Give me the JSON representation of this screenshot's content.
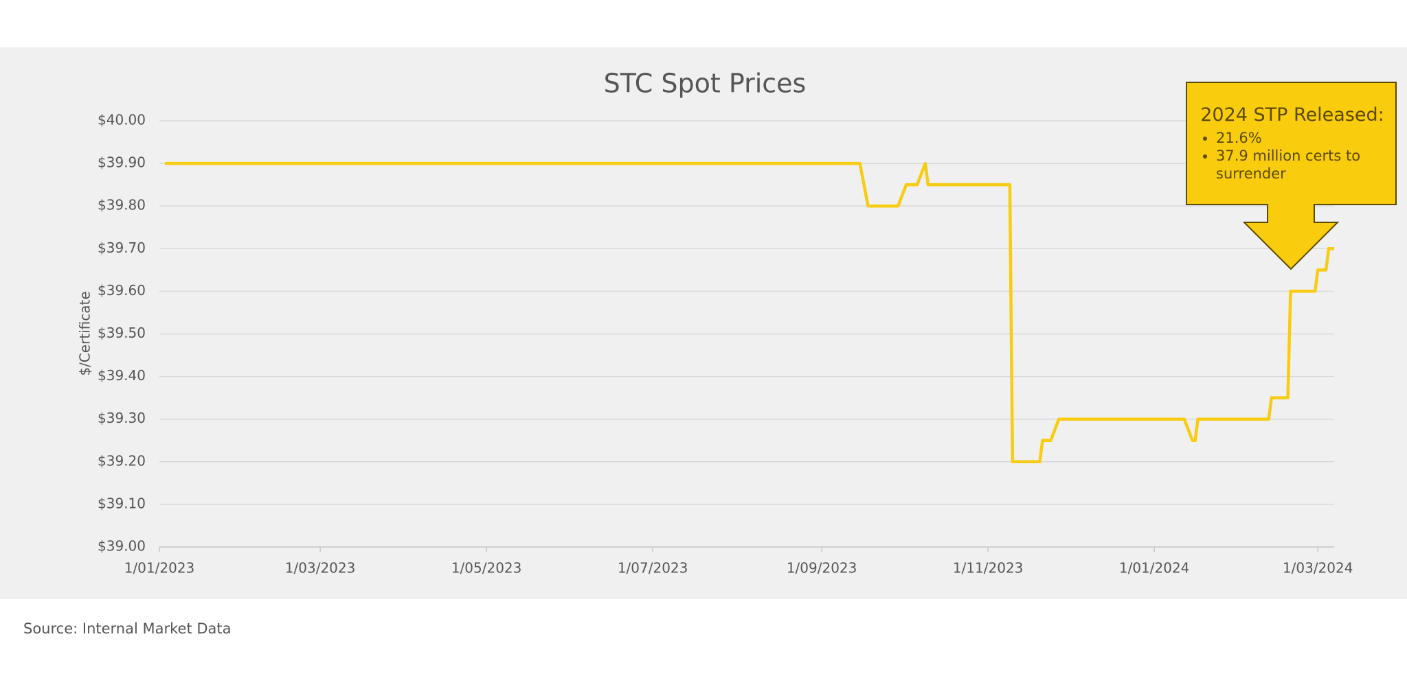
{
  "chart_data": {
    "type": "line",
    "title": "STC Spot Prices",
    "y_label": "$/Certificate",
    "source": "Source: Internal Market Data",
    "color": "#f7cc12",
    "grid": true,
    "x": [
      "2023-01-03",
      "2023-09-15",
      "2023-09-18",
      "2023-09-29",
      "2023-10-02",
      "2023-10-06",
      "2023-10-09",
      "2023-10-10",
      "2023-11-09",
      "2023-11-10",
      "2023-11-20",
      "2023-11-21",
      "2023-11-24",
      "2023-11-27",
      "2024-01-12",
      "2024-01-15",
      "2024-01-16",
      "2024-01-17",
      "2024-02-12",
      "2024-02-13",
      "2024-02-19",
      "2024-02-20",
      "2024-02-29",
      "2024-03-01",
      "2024-03-04",
      "2024-03-05",
      "2024-03-07"
    ],
    "values": [
      39.9,
      39.9,
      39.8,
      39.8,
      39.85,
      39.85,
      39.9,
      39.85,
      39.85,
      39.2,
      39.2,
      39.25,
      39.25,
      39.3,
      39.3,
      39.25,
      39.25,
      39.3,
      39.3,
      39.35,
      39.35,
      39.6,
      39.6,
      39.65,
      39.65,
      39.7,
      39.7
    ],
    "xlim": [
      "2023-01-01",
      "2024-03-07"
    ],
    "xticks": [
      {
        "value": "2023-01-01",
        "label": "1/01/2023"
      },
      {
        "value": "2023-03-01",
        "label": "1/03/2023"
      },
      {
        "value": "2023-05-01",
        "label": "1/05/2023"
      },
      {
        "value": "2023-07-01",
        "label": "1/07/2023"
      },
      {
        "value": "2023-09-01",
        "label": "1/09/2023"
      },
      {
        "value": "2023-11-01",
        "label": "1/11/2023"
      },
      {
        "value": "2024-01-01",
        "label": "1/01/2024"
      },
      {
        "value": "2024-03-01",
        "label": "1/03/2024"
      }
    ],
    "ylim": [
      39,
      40
    ],
    "yticks": [
      {
        "value": 39,
        "label": "$39.00"
      },
      {
        "value": 39.1,
        "label": "$39.10"
      },
      {
        "value": 39.2,
        "label": "$39.20"
      },
      {
        "value": 39.3,
        "label": "$39.30"
      },
      {
        "value": 39.4,
        "label": "$39.40"
      },
      {
        "value": 39.5,
        "label": "$39.50"
      },
      {
        "value": 39.6,
        "label": "$39.60"
      },
      {
        "value": 39.7,
        "label": "$39.70"
      },
      {
        "value": 39.8,
        "label": "$39.80"
      },
      {
        "value": 39.9,
        "label": "$39.90"
      },
      {
        "value": 40,
        "label": "$40.00"
      }
    ],
    "annotation": {
      "title": "2024 STP Released:",
      "bullets": [
        "21.6%",
        "37.9 million certs to surrender"
      ]
    }
  }
}
